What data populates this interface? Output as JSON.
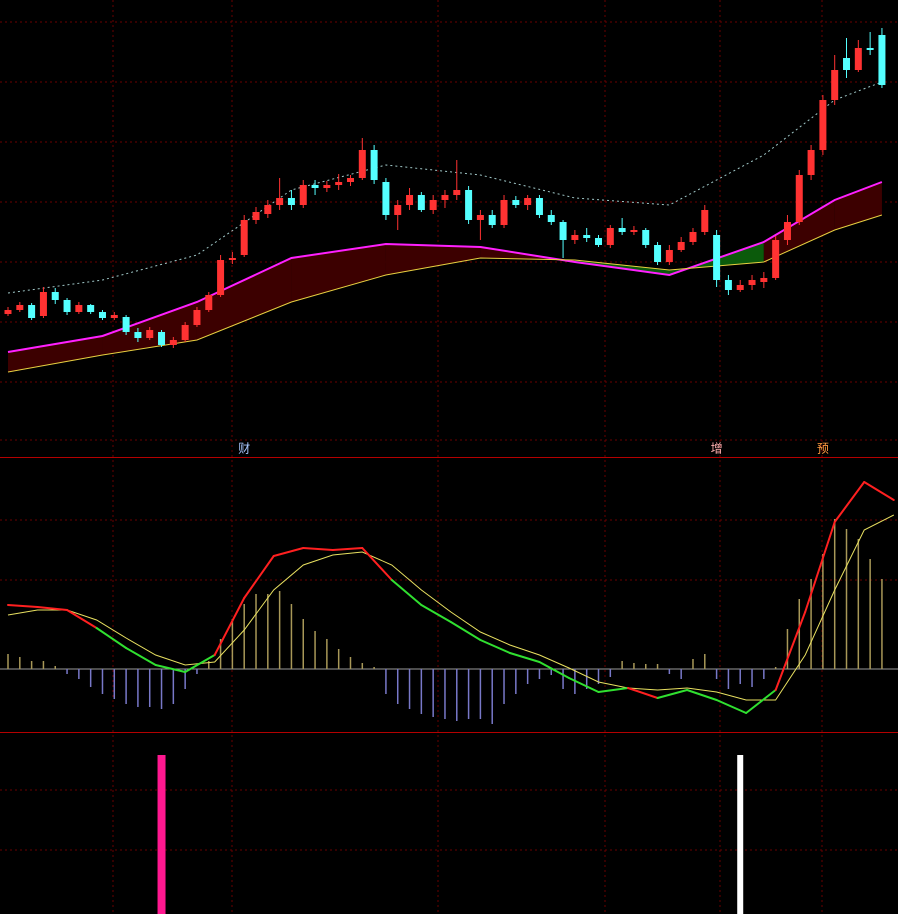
{
  "chart_data": [
    {
      "type": "candlestick",
      "ylim": [
        0,
        44
      ],
      "up_color": "#ff3232",
      "down_color": "#54ffff",
      "candles": [
        [
          12.6,
          13.3,
          12.4,
          13.0
        ],
        [
          13.0,
          13.8,
          12.8,
          13.5
        ],
        [
          13.5,
          13.7,
          12.0,
          12.2
        ],
        [
          12.4,
          15.3,
          12.2,
          14.8
        ],
        [
          14.8,
          15.2,
          13.6,
          14.0
        ],
        [
          14.0,
          14.2,
          12.5,
          12.8
        ],
        [
          12.8,
          13.8,
          12.6,
          13.5
        ],
        [
          13.5,
          13.6,
          12.6,
          12.8
        ],
        [
          12.8,
          13.0,
          12.0,
          12.2
        ],
        [
          12.2,
          12.8,
          12.0,
          12.5
        ],
        [
          12.3,
          12.5,
          10.5,
          10.8
        ],
        [
          10.8,
          11.2,
          9.8,
          10.2
        ],
        [
          10.2,
          11.3,
          10.0,
          11.0
        ],
        [
          10.8,
          11.0,
          9.3,
          9.5
        ],
        [
          9.5,
          10.3,
          9.2,
          10.0
        ],
        [
          10.0,
          11.8,
          9.8,
          11.5
        ],
        [
          11.5,
          13.3,
          11.3,
          13.0
        ],
        [
          13.0,
          14.8,
          12.8,
          14.5
        ],
        [
          14.5,
          18.5,
          14.3,
          18.0
        ],
        [
          18.0,
          18.8,
          17.6,
          18.2
        ],
        [
          18.5,
          22.5,
          18.3,
          22.0
        ],
        [
          22.0,
          23.3,
          21.6,
          22.8
        ],
        [
          22.6,
          24.0,
          22.2,
          23.5
        ],
        [
          23.5,
          26.2,
          23.0,
          24.2
        ],
        [
          24.2,
          25.0,
          23.0,
          23.5
        ],
        [
          23.5,
          26.0,
          23.2,
          25.5
        ],
        [
          25.5,
          26.0,
          24.5,
          25.2
        ],
        [
          25.2,
          25.9,
          24.8,
          25.5
        ],
        [
          25.5,
          26.6,
          25.0,
          25.8
        ],
        [
          25.8,
          26.5,
          25.4,
          26.2
        ],
        [
          26.2,
          30.2,
          26.0,
          29.0
        ],
        [
          29.0,
          29.5,
          25.6,
          26.0
        ],
        [
          25.8,
          26.2,
          22.0,
          22.5
        ],
        [
          22.5,
          24.0,
          21.0,
          23.5
        ],
        [
          23.5,
          25.2,
          23.0,
          24.5
        ],
        [
          24.5,
          24.8,
          22.8,
          23.0
        ],
        [
          23.0,
          24.5,
          22.6,
          24.0
        ],
        [
          24.0,
          25.0,
          23.2,
          24.5
        ],
        [
          24.5,
          28.0,
          24.0,
          25.0
        ],
        [
          25.0,
          25.4,
          21.6,
          22.0
        ],
        [
          22.0,
          23.0,
          20.0,
          22.5
        ],
        [
          22.5,
          23.0,
          21.2,
          21.5
        ],
        [
          21.5,
          24.5,
          21.2,
          24.0
        ],
        [
          24.0,
          24.4,
          23.2,
          23.5
        ],
        [
          23.5,
          24.5,
          23.0,
          24.2
        ],
        [
          24.2,
          24.5,
          22.2,
          22.5
        ],
        [
          22.5,
          23.0,
          21.5,
          21.8
        ],
        [
          21.8,
          22.0,
          18.2,
          20.0
        ],
        [
          20.0,
          21.0,
          19.6,
          20.5
        ],
        [
          20.5,
          21.2,
          19.8,
          20.2
        ],
        [
          20.2,
          20.5,
          19.3,
          19.5
        ],
        [
          19.5,
          21.5,
          19.2,
          21.2
        ],
        [
          21.2,
          22.2,
          20.5,
          20.8
        ],
        [
          20.8,
          21.4,
          20.5,
          21.0
        ],
        [
          21.0,
          21.2,
          19.2,
          19.5
        ],
        [
          19.5,
          19.8,
          17.5,
          17.8
        ],
        [
          17.8,
          19.5,
          17.5,
          19.0
        ],
        [
          19.0,
          20.3,
          18.8,
          19.8
        ],
        [
          19.8,
          21.2,
          19.5,
          20.8
        ],
        [
          20.8,
          23.5,
          20.5,
          23.0
        ],
        [
          20.5,
          21.0,
          15.3,
          16.0
        ],
        [
          16.0,
          16.5,
          14.5,
          15.0
        ],
        [
          15.0,
          16.0,
          14.8,
          15.5
        ],
        [
          15.5,
          16.5,
          15.0,
          16.0
        ],
        [
          15.8,
          16.8,
          15.2,
          16.2
        ],
        [
          16.2,
          20.4,
          16.0,
          20.0
        ],
        [
          20.0,
          22.5,
          19.5,
          21.8
        ],
        [
          21.8,
          27.0,
          21.5,
          26.5
        ],
        [
          26.5,
          29.5,
          26.0,
          29.0
        ],
        [
          29.0,
          34.5,
          28.5,
          34.0
        ],
        [
          34.0,
          38.5,
          33.5,
          37.0
        ],
        [
          38.2,
          40.2,
          36.2,
          37.0
        ],
        [
          37.0,
          40.0,
          36.8,
          39.2
        ],
        [
          39.2,
          40.8,
          38.5,
          39.0
        ],
        [
          40.5,
          41.2,
          35.2,
          35.5
        ]
      ],
      "lines": [
        {
          "color": "#ff20ff",
          "width": 2,
          "x": [
            0,
            8,
            16,
            24,
            32,
            40,
            48,
            56,
            64,
            70,
            74
          ],
          "values": [
            8.8,
            10.4,
            13.8,
            18.2,
            19.6,
            19.3,
            17.8,
            16.5,
            19.8,
            24.0,
            25.8
          ]
        },
        {
          "color": "#e8d040",
          "width": 1,
          "x": [
            0,
            8,
            16,
            24,
            32,
            40,
            48,
            56,
            64,
            70,
            74
          ],
          "values": [
            6.8,
            8.5,
            10.0,
            13.8,
            16.5,
            18.2,
            18.0,
            17.0,
            17.8,
            21.0,
            22.5
          ]
        },
        {
          "color": "#a0c8c8",
          "width": 1,
          "dashed": true,
          "x": [
            0,
            8,
            16,
            24,
            32,
            40,
            48,
            56,
            64,
            70,
            74
          ],
          "values": [
            14.7,
            16.0,
            18.5,
            25.0,
            27.5,
            26.5,
            24.2,
            23.5,
            28.5,
            34.0,
            35.8
          ]
        }
      ],
      "band_colors": [
        "#3c0000",
        "#0b5a0b"
      ],
      "annotations": [
        {
          "x": 20,
          "label": "财",
          "color": "#a8c8ff"
        },
        {
          "x": 60,
          "label": "增",
          "color": "#ffb0b0"
        },
        {
          "x": 69,
          "label": "预",
          "color": "#ff9a40"
        }
      ]
    },
    {
      "type": "macd",
      "ylim": [
        -6.3,
        20.9
      ],
      "x": [
        0,
        2.5,
        5,
        7.5,
        10,
        12.5,
        15,
        17.5,
        20,
        22.5,
        25,
        27.5,
        30,
        32.5,
        35,
        37.5,
        40,
        42.5,
        45,
        47.5,
        50,
        52.5,
        55,
        57.5,
        60,
        62.5,
        65,
        67.5,
        70,
        72.5,
        75
      ],
      "dif": [
        6.4,
        6.2,
        5.9,
        4.1,
        2.1,
        0.4,
        -0.3,
        1.4,
        7.1,
        11.3,
        12.1,
        11.9,
        12.1,
        8.9,
        6.4,
        4.7,
        2.9,
        1.6,
        0.7,
        -0.9,
        -2.3,
        -1.9,
        -2.9,
        -2.1,
        -3.1,
        -4.4,
        -2.1,
        5.7,
        14.7,
        18.7,
        16.9
      ],
      "dea": [
        5.4,
        5.9,
        5.9,
        4.9,
        3.1,
        1.4,
        0.4,
        0.7,
        3.9,
        7.9,
        10.4,
        11.4,
        11.7,
        10.4,
        7.9,
        5.7,
        3.7,
        2.4,
        1.4,
        0.1,
        -1.3,
        -1.9,
        -2.1,
        -1.9,
        -2.3,
        -3.1,
        -3.1,
        1.4,
        7.9,
        13.9,
        15.4
      ],
      "dif_up_color": "#ff2020",
      "dif_down_color": "#30e030",
      "dea_color": "#e8e060",
      "hist": [
        1.5,
        1.2,
        0.8,
        0.8,
        0.3,
        -0.5,
        -1.0,
        -1.8,
        -2.5,
        -3.0,
        -3.5,
        -3.8,
        -3.8,
        -4.0,
        -3.5,
        -2.0,
        -0.5,
        0.8,
        3.0,
        5.0,
        6.5,
        7.5,
        7.5,
        7.8,
        6.5,
        5.0,
        3.8,
        3.0,
        2.0,
        1.2,
        0.6,
        0.2,
        -2.5,
        -3.5,
        -4.0,
        -4.5,
        -4.8,
        -5.0,
        -5.2,
        -5.0,
        -5.0,
        -5.5,
        -3.5,
        -2.5,
        -1.5,
        -1.0,
        -0.6,
        -2.0,
        -2.5,
        -2.0,
        -1.5,
        -0.8,
        0.8,
        0.6,
        0.5,
        0.5,
        -0.5,
        -1.0,
        1.0,
        1.5,
        -1.0,
        -2.0,
        -1.5,
        -1.8,
        -1.0,
        0.2,
        4.0,
        7.0,
        9.0,
        11.5,
        15.0,
        14.0,
        13.0,
        11.0,
        9.0
      ],
      "hist_up_color": "#a89858",
      "hist_down_color": "#7878c8",
      "zero_color": "#9a9a9a"
    },
    {
      "type": "signal",
      "ylim": [
        0,
        1
      ],
      "x": [
        13,
        62
      ],
      "values": [
        1,
        1
      ],
      "colors": [
        "#ff1890",
        "#ffffff"
      ]
    }
  ]
}
